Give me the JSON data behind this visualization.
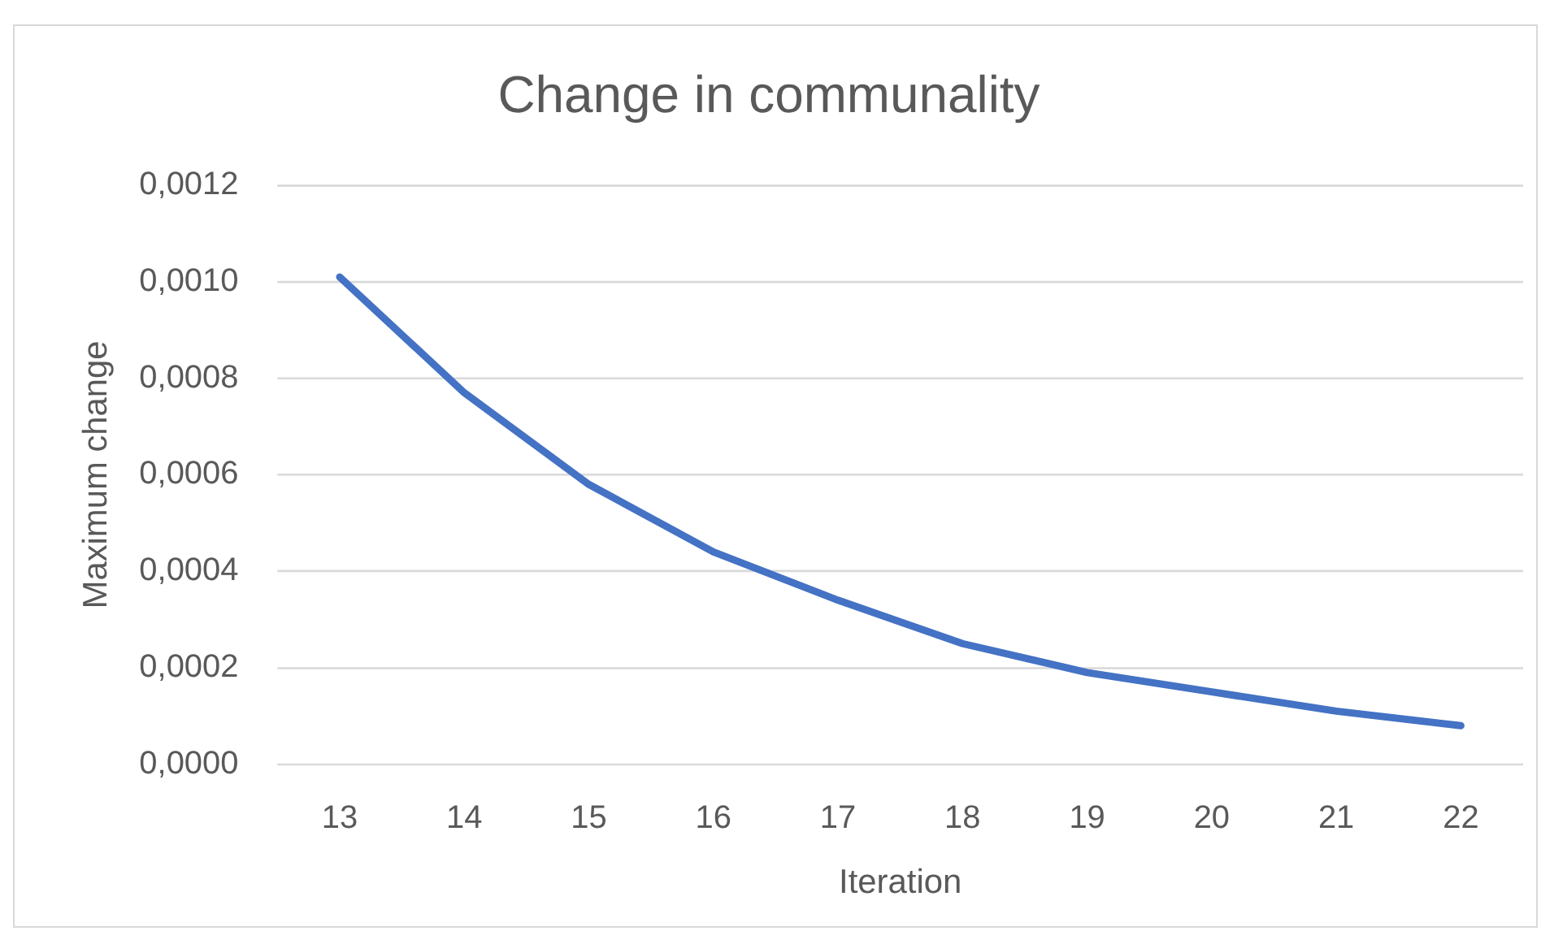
{
  "chart_data": {
    "type": "line",
    "title": "Change in communality",
    "xlabel": "Iteration",
    "ylabel": "Maximum change",
    "categories": [
      "13",
      "14",
      "15",
      "16",
      "17",
      "18",
      "19",
      "20",
      "21",
      "22"
    ],
    "values": [
      0.00101,
      0.00077,
      0.00058,
      0.00044,
      0.00034,
      0.00025,
      0.00019,
      0.00015,
      0.00011,
      8e-05
    ],
    "color": "#4472c4",
    "ylim": [
      0,
      0.0012
    ],
    "yticks": [
      {
        "value": 0,
        "label": "0,0000"
      },
      {
        "value": 0.0002,
        "label": "0,0002"
      },
      {
        "value": 0.0004,
        "label": "0,0004"
      },
      {
        "value": 0.0006,
        "label": "0,0006"
      },
      {
        "value": 0.0008,
        "label": "0,0008"
      },
      {
        "value": 0.001,
        "label": "0,0010"
      },
      {
        "value": 0.0012,
        "label": "0,0012"
      }
    ],
    "grid": "y"
  }
}
